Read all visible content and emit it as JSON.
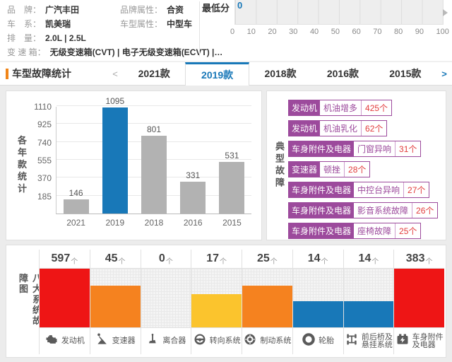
{
  "vehicle_info": {
    "rows": [
      {
        "label": "品　牌：",
        "value": "广汽丰田"
      },
      {
        "label": "车　系：",
        "value": "凯美瑞"
      },
      {
        "label": "排　量：",
        "value": "2.0L | 2.5L"
      },
      {
        "label": "变 速 箱：",
        "value": "无级变速箱(CVT) | 电子无级变速箱(ECVT) |…"
      }
    ],
    "attrs": [
      {
        "label": "品牌属性：",
        "value": "合资"
      },
      {
        "label": "车型属性：",
        "value": "中型车"
      }
    ]
  },
  "score_panel": {
    "label": "最低分",
    "value": "0",
    "ticks": [
      "0",
      "10",
      "20",
      "30",
      "40",
      "50",
      "60",
      "70",
      "80",
      "90",
      "100"
    ]
  },
  "tabs": {
    "title": "车型故障统计",
    "prev": "<",
    "next": ">",
    "items": [
      {
        "label": "2021款",
        "active": false
      },
      {
        "label": "2019款",
        "active": true
      },
      {
        "label": "2018款",
        "active": false
      },
      {
        "label": "2016款",
        "active": false
      },
      {
        "label": "2015款",
        "active": false
      }
    ]
  },
  "chart_data": [
    {
      "type": "bar",
      "title": "各年款统计",
      "categories": [
        "2021",
        "2019",
        "2018",
        "2016",
        "2015"
      ],
      "values": [
        146,
        1095,
        801,
        331,
        531
      ],
      "yticks": [
        185,
        370,
        555,
        740,
        925,
        1110
      ],
      "ylim": [
        0,
        1110
      ],
      "grid": true,
      "highlight_index": 1,
      "bar_color": "#b2b2b2",
      "highlight_color": "#1878b8"
    },
    {
      "type": "bar",
      "title": "八大系统故障图",
      "categories": [
        "发动机",
        "变速器",
        "离合器",
        "转向系统",
        "制动系统",
        "轮胎",
        "前后桥及悬挂系统",
        "车身附件及电器"
      ],
      "values": [
        597,
        45,
        0,
        17,
        25,
        14,
        14,
        383
      ],
      "unit": "个",
      "bar_heights_pct": [
        100,
        71,
        0,
        57,
        71,
        44,
        44,
        100
      ],
      "bar_colors": [
        "#ee1515",
        "#f5821f",
        "none",
        "#fbc42d",
        "#f5821f",
        "#1878b8",
        "#1878b8",
        "#ee1515"
      ]
    }
  ],
  "typical_faults": {
    "title": "典型故障",
    "items": [
      {
        "category": "发动机",
        "fault": "机油增多",
        "count": "425个"
      },
      {
        "category": "发动机",
        "fault": "机油乳化",
        "count": "62个"
      },
      {
        "category": "车身附件及电器",
        "fault": "门窗异响",
        "count": "31个"
      },
      {
        "category": "变速器",
        "fault": "顿挫",
        "count": "28个"
      },
      {
        "category": "车身附件及电器",
        "fault": "中控台异响",
        "count": "27个"
      },
      {
        "category": "车身附件及电器",
        "fault": "影音系统故障",
        "count": "26个"
      },
      {
        "category": "车身附件及电器",
        "fault": "座椅故障",
        "count": "25个"
      }
    ]
  },
  "systems_panel": {
    "title": "八大系统故障图",
    "items": [
      {
        "line1": "发动机",
        "line2": "",
        "icon": "engine-icon"
      },
      {
        "line1": "变速器",
        "line2": "",
        "icon": "gearshift-icon"
      },
      {
        "line1": "离合器",
        "line2": "",
        "icon": "clutch-pedal-icon"
      },
      {
        "line1": "转向系统",
        "line2": "",
        "icon": "steering-wheel-icon"
      },
      {
        "line1": "制动系统",
        "line2": "",
        "icon": "brake-disc-icon"
      },
      {
        "line1": "轮胎",
        "line2": "",
        "icon": "tire-icon"
      },
      {
        "line1": "前后桥及",
        "line2": "悬挂系统",
        "icon": "axle-suspension-icon"
      },
      {
        "line1": "车身附件",
        "line2": "及电器",
        "icon": "battery-electric-icon"
      }
    ]
  },
  "colors": {
    "accent_blue": "#1878b8",
    "accent_orange": "#f08519",
    "bar_gray": "#b2b2b2",
    "tag_purple": "#9c4a9c",
    "count_red": "#e23c3c",
    "sys_red": "#ee1515",
    "sys_orange": "#f5821f",
    "sys_yellow": "#fbc42d",
    "sys_blue": "#1878b8"
  }
}
